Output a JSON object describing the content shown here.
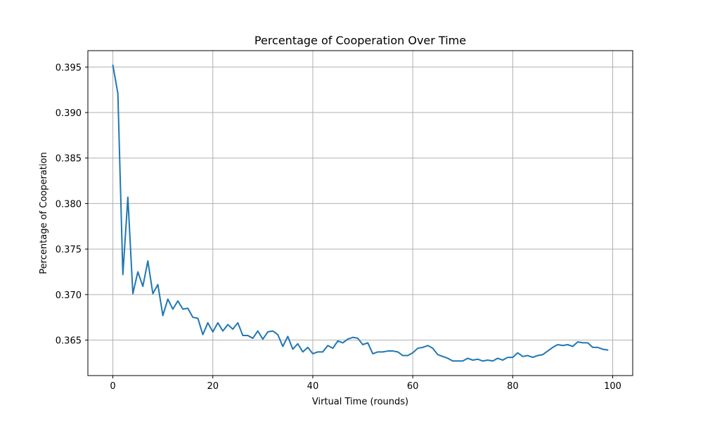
{
  "chart_data": {
    "type": "line",
    "title": "Percentage of Cooperation Over Time",
    "xlabel": "Virtual Time (rounds)",
    "ylabel": "Percentage of Cooperation",
    "xlim": [
      -5,
      104
    ],
    "ylim": [
      0.3611,
      0.3968
    ],
    "xticks": [
      0,
      20,
      40,
      60,
      80,
      100
    ],
    "yticks": [
      0.365,
      0.37,
      0.375,
      0.38,
      0.385,
      0.39,
      0.395
    ],
    "xtick_labels": [
      "0",
      "20",
      "40",
      "60",
      "80",
      "100"
    ],
    "ytick_labels": [
      "0.365",
      "0.370",
      "0.375",
      "0.380",
      "0.385",
      "0.390",
      "0.395"
    ],
    "grid": true,
    "line_color": "#1f77b4",
    "grid_color": "#b0b0b0",
    "series": [
      {
        "x": [
          0,
          1,
          2,
          3,
          4,
          5,
          6,
          7,
          8,
          9,
          10,
          11,
          12,
          13,
          14,
          15,
          16,
          17,
          18,
          19,
          20,
          21,
          22,
          23,
          24,
          25,
          26,
          27,
          28,
          29,
          30,
          31,
          32,
          33,
          34,
          35,
          36,
          37,
          38,
          39,
          40,
          41,
          42,
          43,
          44,
          45,
          46,
          47,
          48,
          49,
          50,
          51,
          52,
          53,
          54,
          55,
          56,
          57,
          58,
          59,
          60,
          61,
          62,
          63,
          64,
          65,
          66,
          67,
          68,
          69,
          70,
          71,
          72,
          73,
          74,
          75,
          76,
          77,
          78,
          79,
          80,
          81,
          82,
          83,
          84,
          85,
          86,
          87,
          88,
          89,
          90,
          91,
          92,
          93,
          94,
          95,
          96,
          97,
          98,
          99
        ],
        "values": [
          0.3952,
          0.3921,
          0.3722,
          0.3807,
          0.3701,
          0.3725,
          0.3709,
          0.3737,
          0.3701,
          0.3711,
          0.3677,
          0.3695,
          0.3684,
          0.3693,
          0.3684,
          0.3685,
          0.3675,
          0.3674,
          0.3656,
          0.3669,
          0.3659,
          0.3669,
          0.366,
          0.3667,
          0.3662,
          0.3669,
          0.3655,
          0.3655,
          0.3652,
          0.366,
          0.3651,
          0.3659,
          0.366,
          0.3656,
          0.3643,
          0.3654,
          0.364,
          0.3646,
          0.3637,
          0.3642,
          0.3635,
          0.3637,
          0.3637,
          0.3644,
          0.3641,
          0.3649,
          0.3647,
          0.3651,
          0.3653,
          0.3652,
          0.3645,
          0.3647,
          0.3635,
          0.3637,
          0.3637,
          0.3638,
          0.3638,
          0.3637,
          0.3633,
          0.3633,
          0.3636,
          0.3641,
          0.3642,
          0.3644,
          0.3641,
          0.3634,
          0.3632,
          0.363,
          0.3627,
          0.3627,
          0.3627,
          0.363,
          0.3628,
          0.3629,
          0.3627,
          0.3628,
          0.3627,
          0.363,
          0.3628,
          0.3631,
          0.3631,
          0.3636,
          0.3632,
          0.3633,
          0.3631,
          0.3633,
          0.3634,
          0.3638,
          0.3642,
          0.3645,
          0.3644,
          0.3645,
          0.3643,
          0.3648,
          0.3647,
          0.3647,
          0.3642,
          0.3642,
          0.364,
          0.3639
        ]
      }
    ]
  }
}
